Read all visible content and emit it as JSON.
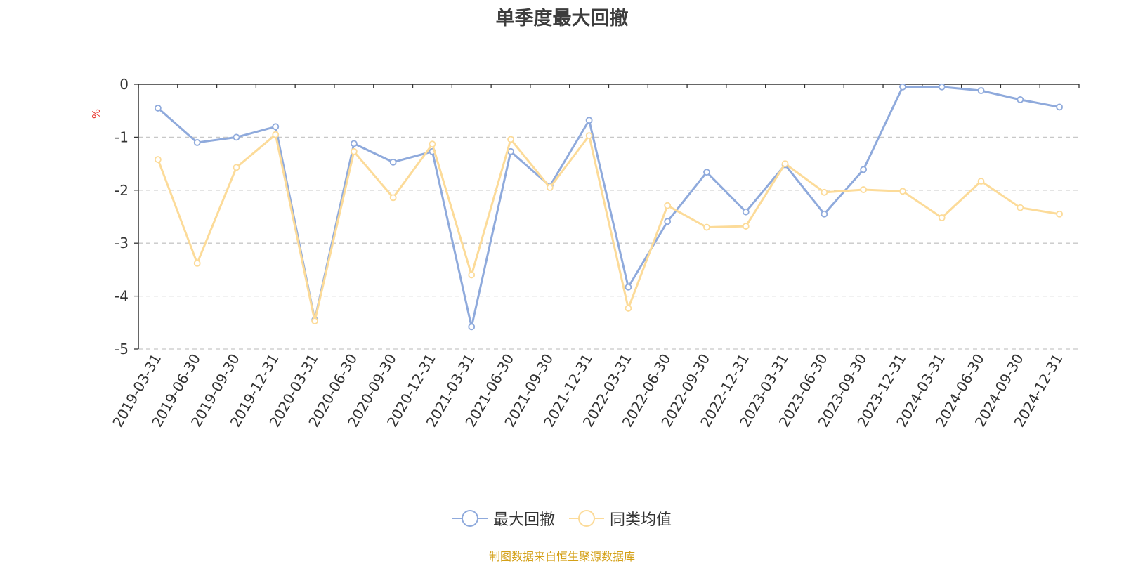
{
  "chart_data": {
    "type": "line",
    "title": "单季度最大回撤",
    "ylabel": "%",
    "ylim": [
      -5,
      0
    ],
    "yticks": [
      0,
      -1,
      -2,
      -3,
      -4,
      -5
    ],
    "grid": true,
    "legend_position": "bottom",
    "categories": [
      "2019-03-31",
      "2019-06-30",
      "2019-09-30",
      "2019-12-31",
      "2020-03-31",
      "2020-06-30",
      "2020-09-30",
      "2020-12-31",
      "2021-03-31",
      "2021-06-30",
      "2021-09-30",
      "2021-12-31",
      "2022-03-31",
      "2022-06-30",
      "2022-09-30",
      "2022-12-31",
      "2023-03-31",
      "2023-06-30",
      "2023-09-30",
      "2023-12-31",
      "2024-03-31",
      "2024-06-30",
      "2024-09-30",
      "2024-12-31"
    ],
    "series": [
      {
        "name": "最大回撤",
        "color": "#8faadc",
        "values": [
          -0.45,
          -1.1,
          -1.0,
          -0.8,
          -4.45,
          -1.12,
          -1.47,
          -1.27,
          -4.58,
          -1.27,
          -1.92,
          -0.68,
          -3.83,
          -2.59,
          -1.66,
          -2.41,
          -1.52,
          -2.45,
          -1.61,
          -0.05,
          -0.05,
          -0.12,
          -0.29,
          -0.43
        ]
      },
      {
        "name": "同类均值",
        "color": "#fcdb99",
        "values": [
          -1.42,
          -3.38,
          -1.57,
          -0.95,
          -4.47,
          -1.27,
          -2.14,
          -1.13,
          -3.6,
          -1.04,
          -1.95,
          -0.97,
          -4.23,
          -2.29,
          -2.7,
          -2.68,
          -1.5,
          -2.04,
          -1.99,
          -2.02,
          -2.52,
          -1.83,
          -2.33,
          -2.45
        ]
      }
    ]
  },
  "source_note": "制图数据来自恒生聚源数据库"
}
